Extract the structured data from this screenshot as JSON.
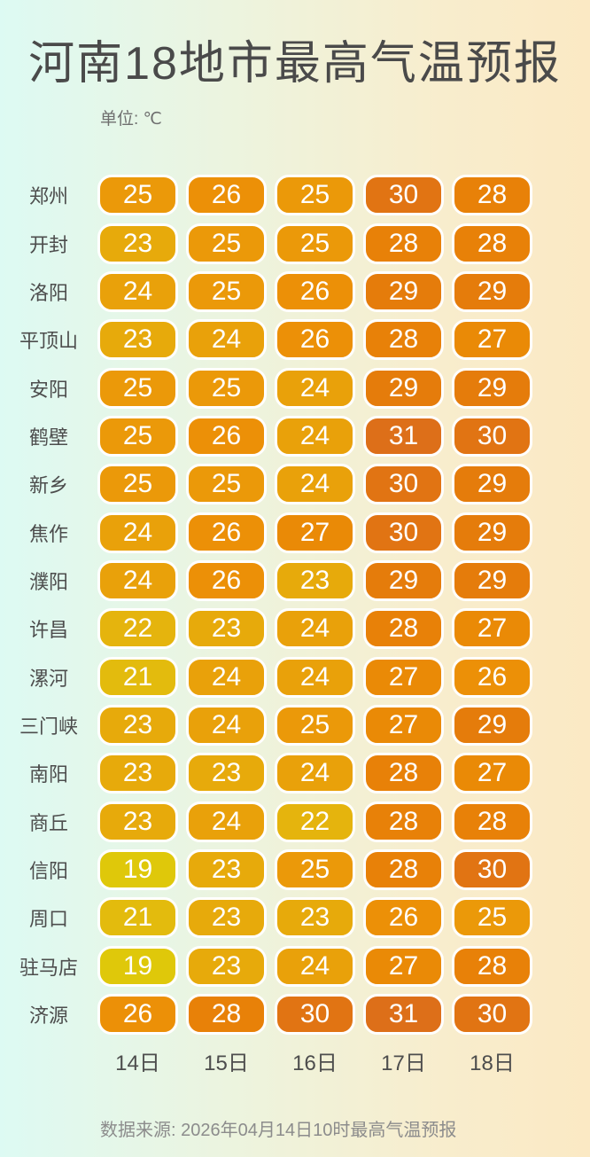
{
  "title": "河南18地市最高气温预报",
  "unit_label": "单位: ℃",
  "source_note": "数据来源: 2026年04月14日10时最高气温预报",
  "background": {
    "left": "#ddfaf3",
    "middle": "#f0f2d9",
    "right": "#fbe9c4"
  },
  "text_colors": {
    "title": "#4a4a4a",
    "city_label": "#4d4d4d",
    "unit": "#6f6f6f",
    "date": "#4d4d4d",
    "source": "#8c8c8c",
    "cell_text": "#ffffff"
  },
  "temp_colors": {
    "19": "#dfc80a",
    "21": "#e3bb0d",
    "22": "#e5b40d",
    "23": "#e7aa0b",
    "24": "#e9a10a",
    "25": "#eb9909",
    "26": "#ec9007",
    "27": "#ea8a06",
    "28": "#e88108",
    "29": "#e57c0b",
    "30": "#e17413",
    "31": "#dd6f19"
  },
  "chart_data": {
    "type": "heatmap",
    "title": "河南18地市最高气温预报",
    "unit": "℃",
    "x_categories": [
      "14日",
      "15日",
      "16日",
      "17日",
      "18日"
    ],
    "y_categories": [
      "郑州",
      "开封",
      "洛阳",
      "平顶山",
      "安阳",
      "鹤壁",
      "新乡",
      "焦作",
      "濮阳",
      "许昌",
      "漯河",
      "三门峡",
      "南阳",
      "商丘",
      "信阳",
      "周口",
      "驻马店",
      "济源"
    ],
    "value_range": [
      19,
      31
    ],
    "rows": [
      {
        "city": "郑州",
        "values": [
          25,
          26,
          25,
          30,
          28
        ]
      },
      {
        "city": "开封",
        "values": [
          23,
          25,
          25,
          28,
          28
        ]
      },
      {
        "city": "洛阳",
        "values": [
          24,
          25,
          26,
          29,
          29
        ]
      },
      {
        "city": "平顶山",
        "values": [
          23,
          24,
          26,
          28,
          27
        ]
      },
      {
        "city": "安阳",
        "values": [
          25,
          25,
          24,
          29,
          29
        ]
      },
      {
        "city": "鹤壁",
        "values": [
          25,
          26,
          24,
          31,
          30
        ]
      },
      {
        "city": "新乡",
        "values": [
          25,
          25,
          24,
          30,
          29
        ]
      },
      {
        "city": "焦作",
        "values": [
          24,
          26,
          27,
          30,
          29
        ]
      },
      {
        "city": "濮阳",
        "values": [
          24,
          26,
          23,
          29,
          29
        ]
      },
      {
        "city": "许昌",
        "values": [
          22,
          23,
          24,
          28,
          27
        ]
      },
      {
        "city": "漯河",
        "values": [
          21,
          24,
          24,
          27,
          26
        ]
      },
      {
        "city": "三门峡",
        "values": [
          23,
          24,
          25,
          27,
          29
        ]
      },
      {
        "city": "南阳",
        "values": [
          23,
          23,
          24,
          28,
          27
        ]
      },
      {
        "city": "商丘",
        "values": [
          23,
          24,
          22,
          28,
          28
        ]
      },
      {
        "city": "信阳",
        "values": [
          19,
          23,
          25,
          28,
          30
        ]
      },
      {
        "city": "周口",
        "values": [
          21,
          23,
          23,
          26,
          25
        ]
      },
      {
        "city": "驻马店",
        "values": [
          19,
          23,
          24,
          27,
          28
        ]
      },
      {
        "city": "济源",
        "values": [
          26,
          28,
          30,
          31,
          30
        ]
      }
    ]
  }
}
